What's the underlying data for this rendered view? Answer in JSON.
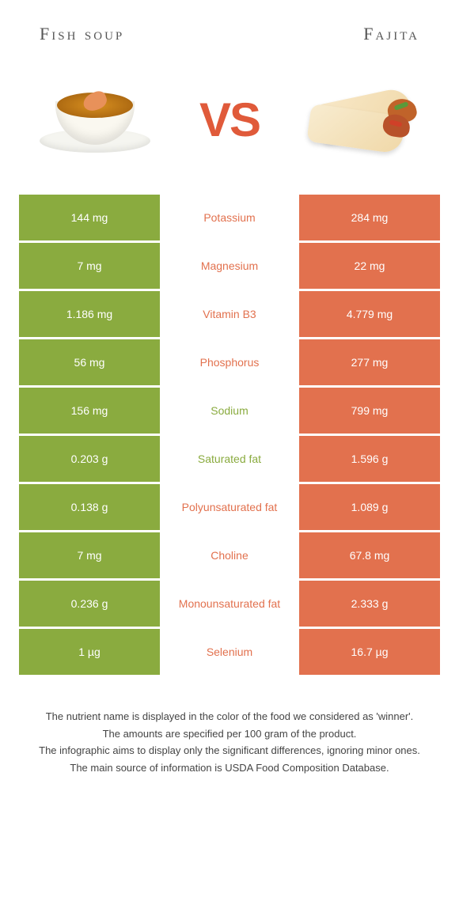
{
  "header": {
    "left_title": "Fish soup",
    "right_title": "Fajita"
  },
  "vs_label": "VS",
  "colors": {
    "left": "#8aab3f",
    "right": "#e2714e",
    "nutrient_left_win": "#8aab3f",
    "nutrient_right_win": "#e2714e"
  },
  "table": {
    "rows": [
      {
        "left": "144 mg",
        "label": "Potassium",
        "right": "284 mg",
        "winner": "right"
      },
      {
        "left": "7 mg",
        "label": "Magnesium",
        "right": "22 mg",
        "winner": "right"
      },
      {
        "left": "1.186 mg",
        "label": "Vitamin B3",
        "right": "4.779 mg",
        "winner": "right"
      },
      {
        "left": "56 mg",
        "label": "Phosphorus",
        "right": "277 mg",
        "winner": "right"
      },
      {
        "left": "156 mg",
        "label": "Sodium",
        "right": "799 mg",
        "winner": "left"
      },
      {
        "left": "0.203 g",
        "label": "Saturated fat",
        "right": "1.596 g",
        "winner": "left"
      },
      {
        "left": "0.138 g",
        "label": "Polyunsaturated fat",
        "right": "1.089 g",
        "winner": "right"
      },
      {
        "left": "7 mg",
        "label": "Choline",
        "right": "67.8 mg",
        "winner": "right"
      },
      {
        "left": "0.236 g",
        "label": "Monounsaturated fat",
        "right": "2.333 g",
        "winner": "right"
      },
      {
        "left": "1 µg",
        "label": "Selenium",
        "right": "16.7 µg",
        "winner": "right"
      }
    ]
  },
  "footnotes": [
    "The nutrient name is displayed in the color of the food we considered as 'winner'.",
    "The amounts are specified per 100 gram of the product.",
    "The infographic aims to display only the significant differences, ignoring minor ones.",
    "The main source of information is USDA Food Composition Database."
  ]
}
